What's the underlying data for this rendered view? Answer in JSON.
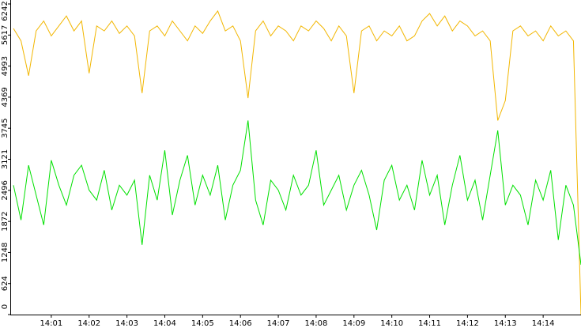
{
  "chart_data": {
    "type": "line",
    "x": [
      840,
      840.2,
      840.4,
      840.6,
      840.8,
      841,
      841.2,
      841.4,
      841.6,
      841.8,
      842,
      842.2,
      842.4,
      842.6,
      842.8,
      843,
      843.2,
      843.4,
      843.6,
      843.8,
      844,
      844.2,
      844.4,
      844.6,
      844.8,
      845,
      845.2,
      845.4,
      845.6,
      845.8,
      846,
      846.2,
      846.4,
      846.6,
      846.8,
      847,
      847.2,
      847.4,
      847.6,
      847.8,
      848,
      848.2,
      848.4,
      848.6,
      848.8,
      849,
      849.2,
      849.4,
      849.6,
      849.8,
      850,
      850.2,
      850.4,
      850.6,
      850.8,
      851,
      851.2,
      851.4,
      851.6,
      851.8,
      852,
      852.2,
      852.4,
      852.6,
      852.8,
      853,
      853.2,
      853.4,
      853.6,
      853.8,
      854,
      854.2,
      854.4,
      854.6,
      854.8,
      855
    ],
    "series": [
      {
        "color": "#f2b600",
        "values": [
          5750,
          5500,
          4800,
          5700,
          5900,
          5600,
          5800,
          6000,
          5700,
          5900,
          4850,
          5800,
          5700,
          5900,
          5650,
          5800,
          5600,
          4450,
          5700,
          5800,
          5600,
          5900,
          5700,
          5500,
          5800,
          5650,
          5900,
          6100,
          5700,
          5800,
          5500,
          4350,
          5700,
          5900,
          5600,
          5800,
          5700,
          5500,
          5800,
          5700,
          5900,
          5750,
          5500,
          5800,
          5600,
          4450,
          5700,
          5800,
          5500,
          5700,
          5600,
          5800,
          5500,
          5600,
          5900,
          6050,
          5800,
          6000,
          5700,
          5900,
          5800,
          5600,
          5700,
          5500,
          3900,
          4300,
          5700,
          5800,
          5600,
          5700,
          5500,
          5800,
          5600,
          5700,
          5500,
          0
        ]
      },
      {
        "color": "#00e000",
        "values": [
          2600,
          1900,
          3000,
          2400,
          1800,
          3100,
          2600,
          2200,
          2800,
          3000,
          2500,
          2300,
          2900,
          2100,
          2600,
          2400,
          2700,
          1400,
          2800,
          2300,
          3300,
          2000,
          2700,
          3200,
          2200,
          2800,
          2400,
          3000,
          1900,
          2600,
          2900,
          3900,
          2300,
          1800,
          2700,
          2500,
          2100,
          2800,
          2400,
          2600,
          3300,
          2200,
          2500,
          2800,
          2100,
          2600,
          2900,
          2400,
          1700,
          2700,
          3000,
          2300,
          2600,
          2100,
          3100,
          2400,
          2800,
          1800,
          2600,
          3200,
          2300,
          2700,
          1900,
          2800,
          3700,
          2200,
          2600,
          2400,
          1800,
          2700,
          2300,
          2900,
          1500,
          2600,
          2200,
          1000
        ]
      }
    ],
    "xlim": [
      840,
      855
    ],
    "xticks": [
      {
        "value": 841,
        "label": "14:01"
      },
      {
        "value": 842,
        "label": "14:02"
      },
      {
        "value": 843,
        "label": "14:03"
      },
      {
        "value": 844,
        "label": "14:04"
      },
      {
        "value": 845,
        "label": "14:05"
      },
      {
        "value": 846,
        "label": "14:06"
      },
      {
        "value": 847,
        "label": "14:07"
      },
      {
        "value": 848,
        "label": "14:08"
      },
      {
        "value": 849,
        "label": "14:09"
      },
      {
        "value": 850,
        "label": "14:10"
      },
      {
        "value": 851,
        "label": "14:11"
      },
      {
        "value": 852,
        "label": "14:12"
      },
      {
        "value": 853,
        "label": "14:13"
      },
      {
        "value": 854,
        "label": "14:14"
      }
    ],
    "ylim": [
      0,
      6242
    ],
    "yticks": [
      0,
      624,
      1248,
      1872,
      2496,
      3121,
      3745,
      4369,
      4993,
      5617,
      6242
    ]
  }
}
